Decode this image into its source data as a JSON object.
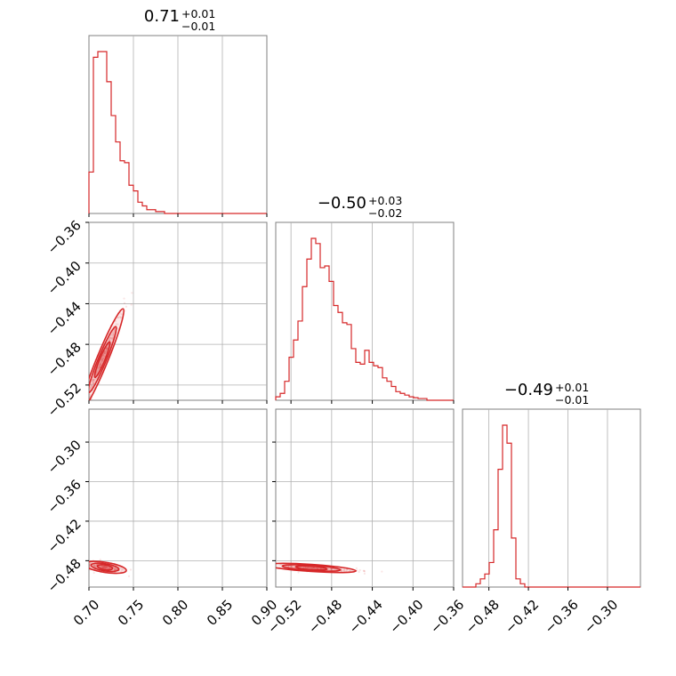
{
  "chart_data": {
    "type": "corner",
    "color": "#d62728",
    "grid": true,
    "parameters": [
      {
        "title": {
          "value": "0.71",
          "plus": "+0.01",
          "minus": "−0.01"
        },
        "range": [
          0.7,
          0.9
        ],
        "ticks": [
          0.7,
          0.75,
          0.8,
          0.85,
          0.9
        ],
        "tick_labels": [
          "0.70",
          "0.75",
          "0.80",
          "0.85",
          "0.90"
        ],
        "histogram": [
          0.22,
          0.83,
          0.86,
          0.86,
          0.7,
          0.52,
          0.38,
          0.28,
          0.27,
          0.15,
          0.12,
          0.06,
          0.04,
          0.02,
          0.02,
          0.01,
          0.01,
          0,
          0,
          0,
          0,
          0,
          0,
          0,
          0,
          0,
          0,
          0,
          0,
          0,
          0,
          0,
          0,
          0,
          0,
          0,
          0,
          0,
          0,
          0
        ]
      },
      {
        "title": {
          "value": "−0.50",
          "plus": "+0.03",
          "minus": "−0.02"
        },
        "range": [
          -0.535,
          -0.36
        ],
        "ticks": [
          -0.52,
          -0.48,
          -0.44,
          -0.4,
          -0.36
        ],
        "tick_labels": [
          "−0.52",
          "−0.48",
          "−0.44",
          "−0.40",
          "−0.36"
        ],
        "y_ticks": [
          -0.52,
          -0.48,
          -0.44,
          -0.4,
          -0.36
        ],
        "histogram": [
          0.02,
          0.04,
          0.11,
          0.25,
          0.35,
          0.46,
          0.66,
          0.82,
          0.94,
          0.91,
          0.77,
          0.78,
          0.69,
          0.55,
          0.51,
          0.45,
          0.44,
          0.3,
          0.22,
          0.21,
          0.29,
          0.22,
          0.2,
          0.19,
          0.13,
          0.11,
          0.08,
          0.05,
          0.04,
          0.03,
          0.02,
          0.015,
          0.01,
          0.01,
          0,
          0,
          0,
          0,
          0,
          0
        ]
      },
      {
        "title": {
          "value": "−0.49",
          "plus": "+0.01",
          "minus": "−0.01"
        },
        "range": [
          -0.52,
          -0.25
        ],
        "ticks": [
          -0.48,
          -0.42,
          -0.36,
          -0.3
        ],
        "tick_labels": [
          "−0.48",
          "−0.42",
          "−0.36",
          "−0.30"
        ],
        "y_ticks": [
          -0.48,
          -0.42,
          -0.36,
          -0.3
        ],
        "histogram": [
          0,
          0,
          0,
          0.02,
          0.05,
          0.08,
          0.15,
          0.35,
          0.72,
          0.99,
          0.88,
          0.3,
          0.05,
          0.02,
          0,
          0,
          0,
          0,
          0,
          0,
          0,
          0,
          0,
          0,
          0,
          0,
          0,
          0,
          0,
          0,
          0,
          0,
          0,
          0,
          0,
          0,
          0,
          0,
          0,
          0
        ]
      }
    ],
    "correlations": [
      {
        "x": 0,
        "y": 1,
        "center": [
          0.715,
          -0.495
        ],
        "spread": [
          0.012,
          0.025
        ],
        "rho": 0.97
      },
      {
        "x": 0,
        "y": 2,
        "center": [
          0.718,
          -0.49
        ],
        "spread": [
          0.012,
          0.004
        ],
        "rho": -0.6
      },
      {
        "x": 1,
        "y": 2,
        "center": [
          -0.5,
          -0.491
        ],
        "spread": [
          0.022,
          0.003
        ],
        "rho": -0.75
      }
    ]
  }
}
